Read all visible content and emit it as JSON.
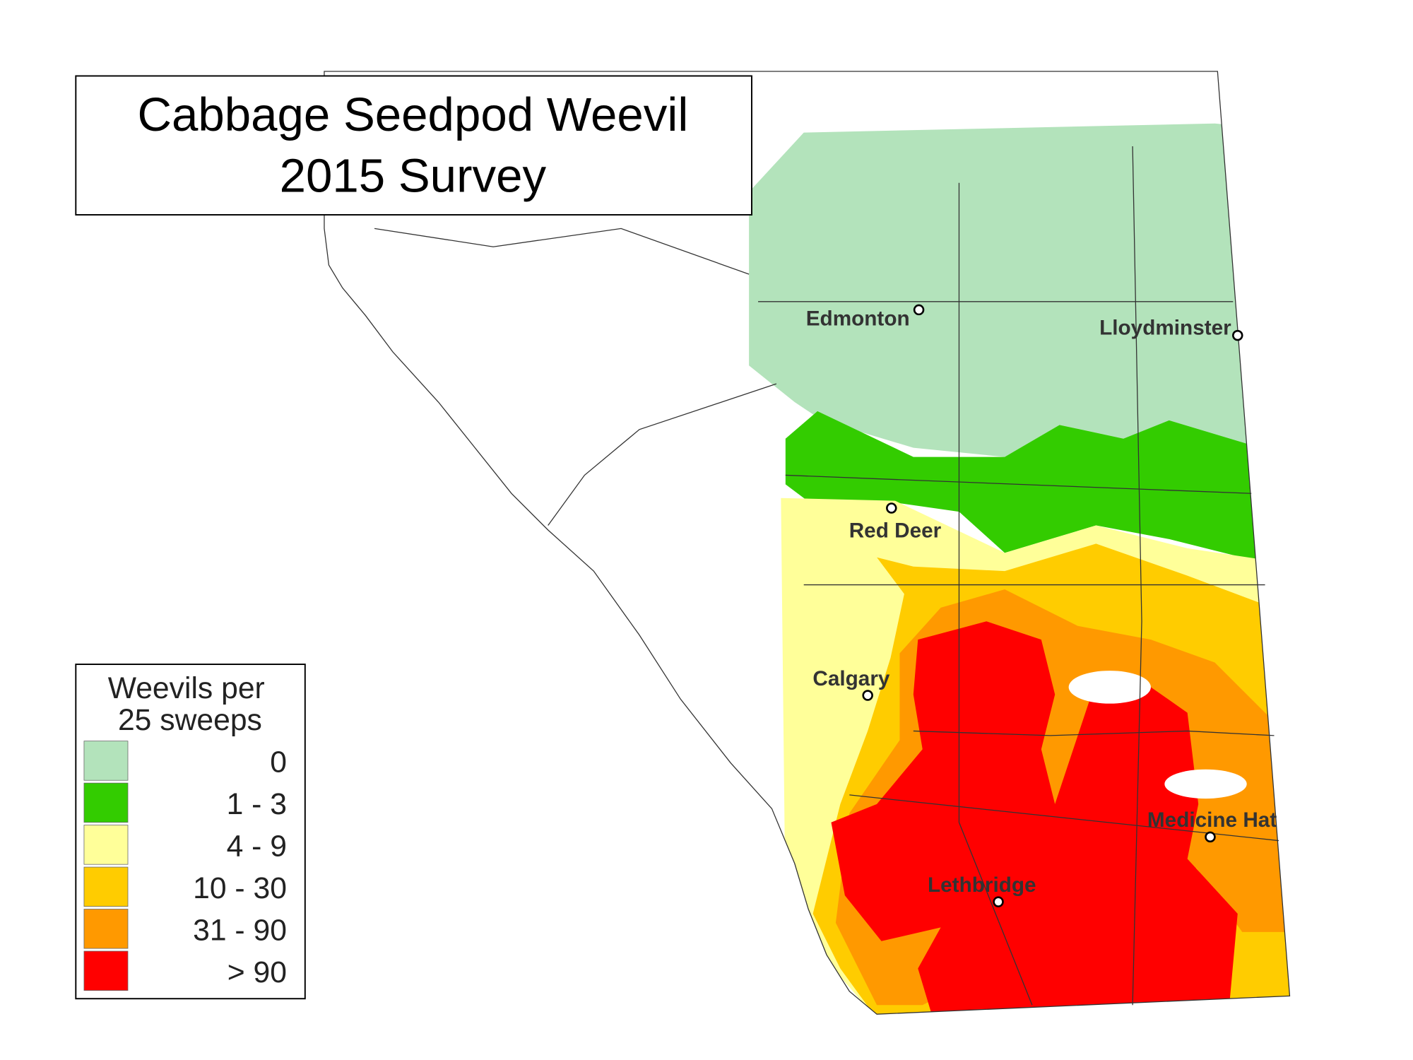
{
  "title": [
    "Cabbage Seedpod Weevil",
    "2015 Survey"
  ],
  "legend": {
    "title": [
      "Weevils per",
      "25 sweeps"
    ],
    "items": [
      {
        "label": "0",
        "color": "#b3e3bb"
      },
      {
        "label": "1 -  3",
        "color": "#33cc00"
      },
      {
        "label": "4 -  9",
        "color": "#ffff99"
      },
      {
        "label": "10 - 30",
        "color": "#ffcc00"
      },
      {
        "label": "31 - 90",
        "color": "#ff9900"
      },
      {
        "label": "> 90",
        "color": "#ff0000"
      }
    ]
  },
  "cities": [
    "Edmonton",
    "Lloydminster",
    "Red Deer",
    "Calgary",
    "Medicine Hat",
    "Lethbridge"
  ]
}
